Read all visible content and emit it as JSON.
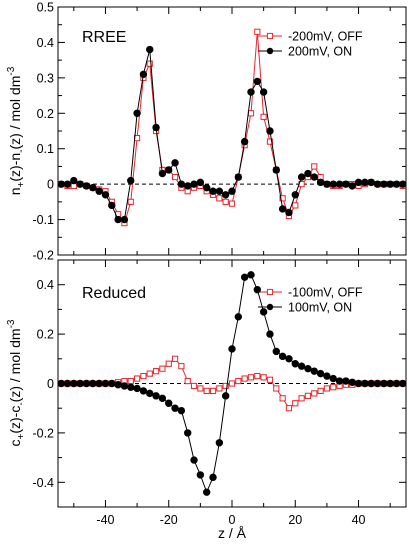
{
  "chart_data": [
    {
      "type": "line",
      "panel_title": "RREE",
      "ylabel_base": "n",
      "ylabel_parts": [
        "n",
        "+",
        "(z)-n",
        "-",
        "(z) / mol dm",
        "-3"
      ],
      "xlabel": "",
      "xlim": [
        -55,
        55
      ],
      "ylim": [
        -0.2,
        0.5
      ],
      "yticks": [
        -0.2,
        -0.1,
        0,
        0.1,
        0.2,
        0.3,
        0.4,
        0.5
      ],
      "ytick_labels": [
        "-0.2",
        "-0.1",
        "0",
        "0.1",
        "0.2",
        "0.3",
        "0.4",
        "0.5"
      ],
      "xticks": [
        -40,
        -20,
        0,
        20,
        40
      ],
      "xtick_labels": [],
      "zero_line": true,
      "legend_position": "top-right",
      "series": [
        {
          "name": "-200mV, OFF",
          "color": "#e8262d",
          "marker": "open-square",
          "x": [
            -54,
            -52,
            -50,
            -48,
            -46,
            -44,
            -42,
            -40,
            -38,
            -36,
            -34,
            -32,
            -30,
            -28,
            -26,
            -24,
            -22,
            -20,
            -18,
            -16,
            -14,
            -12,
            -10,
            -8,
            -6,
            -4,
            -2,
            0,
            2,
            4,
            6,
            8,
            10,
            12,
            14,
            16,
            18,
            20,
            22,
            24,
            26,
            28,
            30,
            32,
            34,
            36,
            38,
            40,
            42,
            44,
            46,
            48,
            50,
            52,
            54
          ],
          "y": [
            0.0,
            -0.005,
            -0.005,
            0.0,
            -0.005,
            -0.01,
            -0.015,
            -0.02,
            -0.05,
            -0.085,
            -0.11,
            -0.05,
            0.13,
            0.3,
            0.34,
            0.15,
            0.04,
            0.04,
            0.02,
            -0.01,
            -0.02,
            -0.01,
            -0.005,
            -0.02,
            -0.03,
            -0.04,
            -0.05,
            -0.055,
            0.02,
            0.11,
            0.2,
            0.43,
            0.19,
            0.12,
            0.04,
            -0.04,
            -0.09,
            -0.06,
            0.0,
            0.02,
            0.05,
            0.02,
            0.0,
            -0.005,
            -0.005,
            0.0,
            0.0,
            -0.005,
            0.0,
            0.005,
            0.0,
            0.0,
            0.0,
            0.0,
            -0.005
          ]
        },
        {
          "name": "200mV, ON",
          "color": "#000000",
          "marker": "filled-circle",
          "x": [
            -54,
            -52,
            -50,
            -48,
            -46,
            -44,
            -42,
            -40,
            -38,
            -36,
            -34,
            -32,
            -30,
            -28,
            -26,
            -24,
            -22,
            -20,
            -18,
            -16,
            -14,
            -12,
            -10,
            -8,
            -6,
            -4,
            -2,
            0,
            2,
            4,
            6,
            8,
            10,
            12,
            14,
            16,
            18,
            20,
            22,
            24,
            26,
            28,
            30,
            32,
            34,
            36,
            38,
            40,
            42,
            44,
            46,
            48,
            50,
            52,
            54
          ],
          "y": [
            0.0,
            0.0,
            0.01,
            0.0,
            -0.005,
            -0.01,
            -0.02,
            -0.03,
            -0.06,
            -0.1,
            -0.1,
            0.01,
            0.2,
            0.31,
            0.38,
            0.16,
            0.03,
            0.04,
            0.06,
            0.0,
            -0.005,
            0.0,
            0.005,
            -0.01,
            -0.02,
            -0.02,
            -0.03,
            -0.02,
            0.02,
            0.12,
            0.26,
            0.29,
            0.26,
            0.15,
            0.04,
            -0.07,
            -0.08,
            -0.03,
            0.02,
            0.03,
            0.02,
            0.005,
            0.0,
            0.0,
            0.0,
            0.0,
            -0.005,
            0.005,
            0.005,
            0.005,
            0.0,
            0.0,
            0.0,
            0.0,
            0.0
          ]
        }
      ]
    },
    {
      "type": "line",
      "panel_title": "Reduced",
      "ylabel_parts": [
        "c",
        "+",
        "(z)-c",
        "-",
        "(z) / mol dm",
        "-3"
      ],
      "xlabel": "z / Å",
      "xlim": [
        -55,
        55
      ],
      "ylim": [
        -0.5,
        0.5
      ],
      "yticks": [
        -0.4,
        -0.2,
        0,
        0.2,
        0.4
      ],
      "ytick_labels": [
        "-0.4",
        "-0.2",
        "0",
        "0.2",
        "0.4"
      ],
      "xticks": [
        -40,
        -20,
        0,
        20,
        40
      ],
      "xtick_labels": [
        "-40",
        "-20",
        "0",
        "20",
        "40"
      ],
      "zero_line": true,
      "legend_position": "top-right",
      "series": [
        {
          "name": "-100mV, OFF",
          "color": "#e8262d",
          "marker": "open-square",
          "x": [
            -54,
            -52,
            -50,
            -48,
            -46,
            -44,
            -42,
            -40,
            -38,
            -36,
            -34,
            -32,
            -30,
            -28,
            -26,
            -24,
            -22,
            -20,
            -18,
            -16,
            -14,
            -12,
            -10,
            -8,
            -6,
            -4,
            -2,
            0,
            2,
            4,
            6,
            8,
            10,
            12,
            14,
            16,
            18,
            20,
            22,
            24,
            26,
            28,
            30,
            32,
            34,
            36,
            38,
            40,
            42,
            44,
            46,
            48,
            50,
            52,
            54
          ],
          "y": [
            0.0,
            0.0,
            0.0,
            0.0,
            0.0,
            0.0,
            0.0,
            0.0,
            0.0,
            0.005,
            0.01,
            0.01,
            0.02,
            0.03,
            0.04,
            0.05,
            0.06,
            0.08,
            0.1,
            0.07,
            0.01,
            -0.01,
            -0.02,
            -0.03,
            -0.03,
            -0.02,
            -0.01,
            0.0,
            0.01,
            0.02,
            0.025,
            0.03,
            0.025,
            0.015,
            -0.02,
            -0.06,
            -0.1,
            -0.08,
            -0.06,
            -0.05,
            -0.04,
            -0.03,
            -0.02,
            -0.015,
            -0.01,
            -0.005,
            -0.005,
            0.0,
            0.0,
            0.0,
            0.0,
            0.0,
            0.0,
            0.0,
            0.0
          ]
        },
        {
          "name": "100mV, ON",
          "color": "#000000",
          "marker": "filled-circle",
          "x": [
            -54,
            -52,
            -50,
            -48,
            -46,
            -44,
            -42,
            -40,
            -38,
            -36,
            -34,
            -32,
            -30,
            -28,
            -26,
            -24,
            -22,
            -20,
            -18,
            -16,
            -14,
            -12,
            -10,
            -8,
            -6,
            -4,
            -2,
            0,
            2,
            4,
            6,
            8,
            10,
            12,
            14,
            16,
            18,
            20,
            22,
            24,
            26,
            28,
            30,
            32,
            34,
            36,
            38,
            40,
            42,
            44,
            46,
            48,
            50,
            52,
            54
          ],
          "y": [
            0.0,
            0.0,
            0.0,
            0.0,
            0.0,
            0.0,
            0.0,
            0.0,
            0.0,
            -0.005,
            -0.01,
            -0.015,
            -0.02,
            -0.03,
            -0.04,
            -0.05,
            -0.06,
            -0.08,
            -0.1,
            -0.11,
            -0.2,
            -0.31,
            -0.37,
            -0.44,
            -0.38,
            -0.24,
            -0.05,
            0.14,
            0.27,
            0.43,
            0.44,
            0.38,
            0.29,
            0.2,
            0.13,
            0.11,
            0.1,
            0.08,
            0.07,
            0.06,
            0.05,
            0.04,
            0.03,
            0.02,
            0.01,
            0.01,
            0.005,
            0.0,
            0.0,
            0.0,
            0.0,
            0.0,
            0.0,
            0.0,
            0.0
          ]
        }
      ]
    }
  ]
}
